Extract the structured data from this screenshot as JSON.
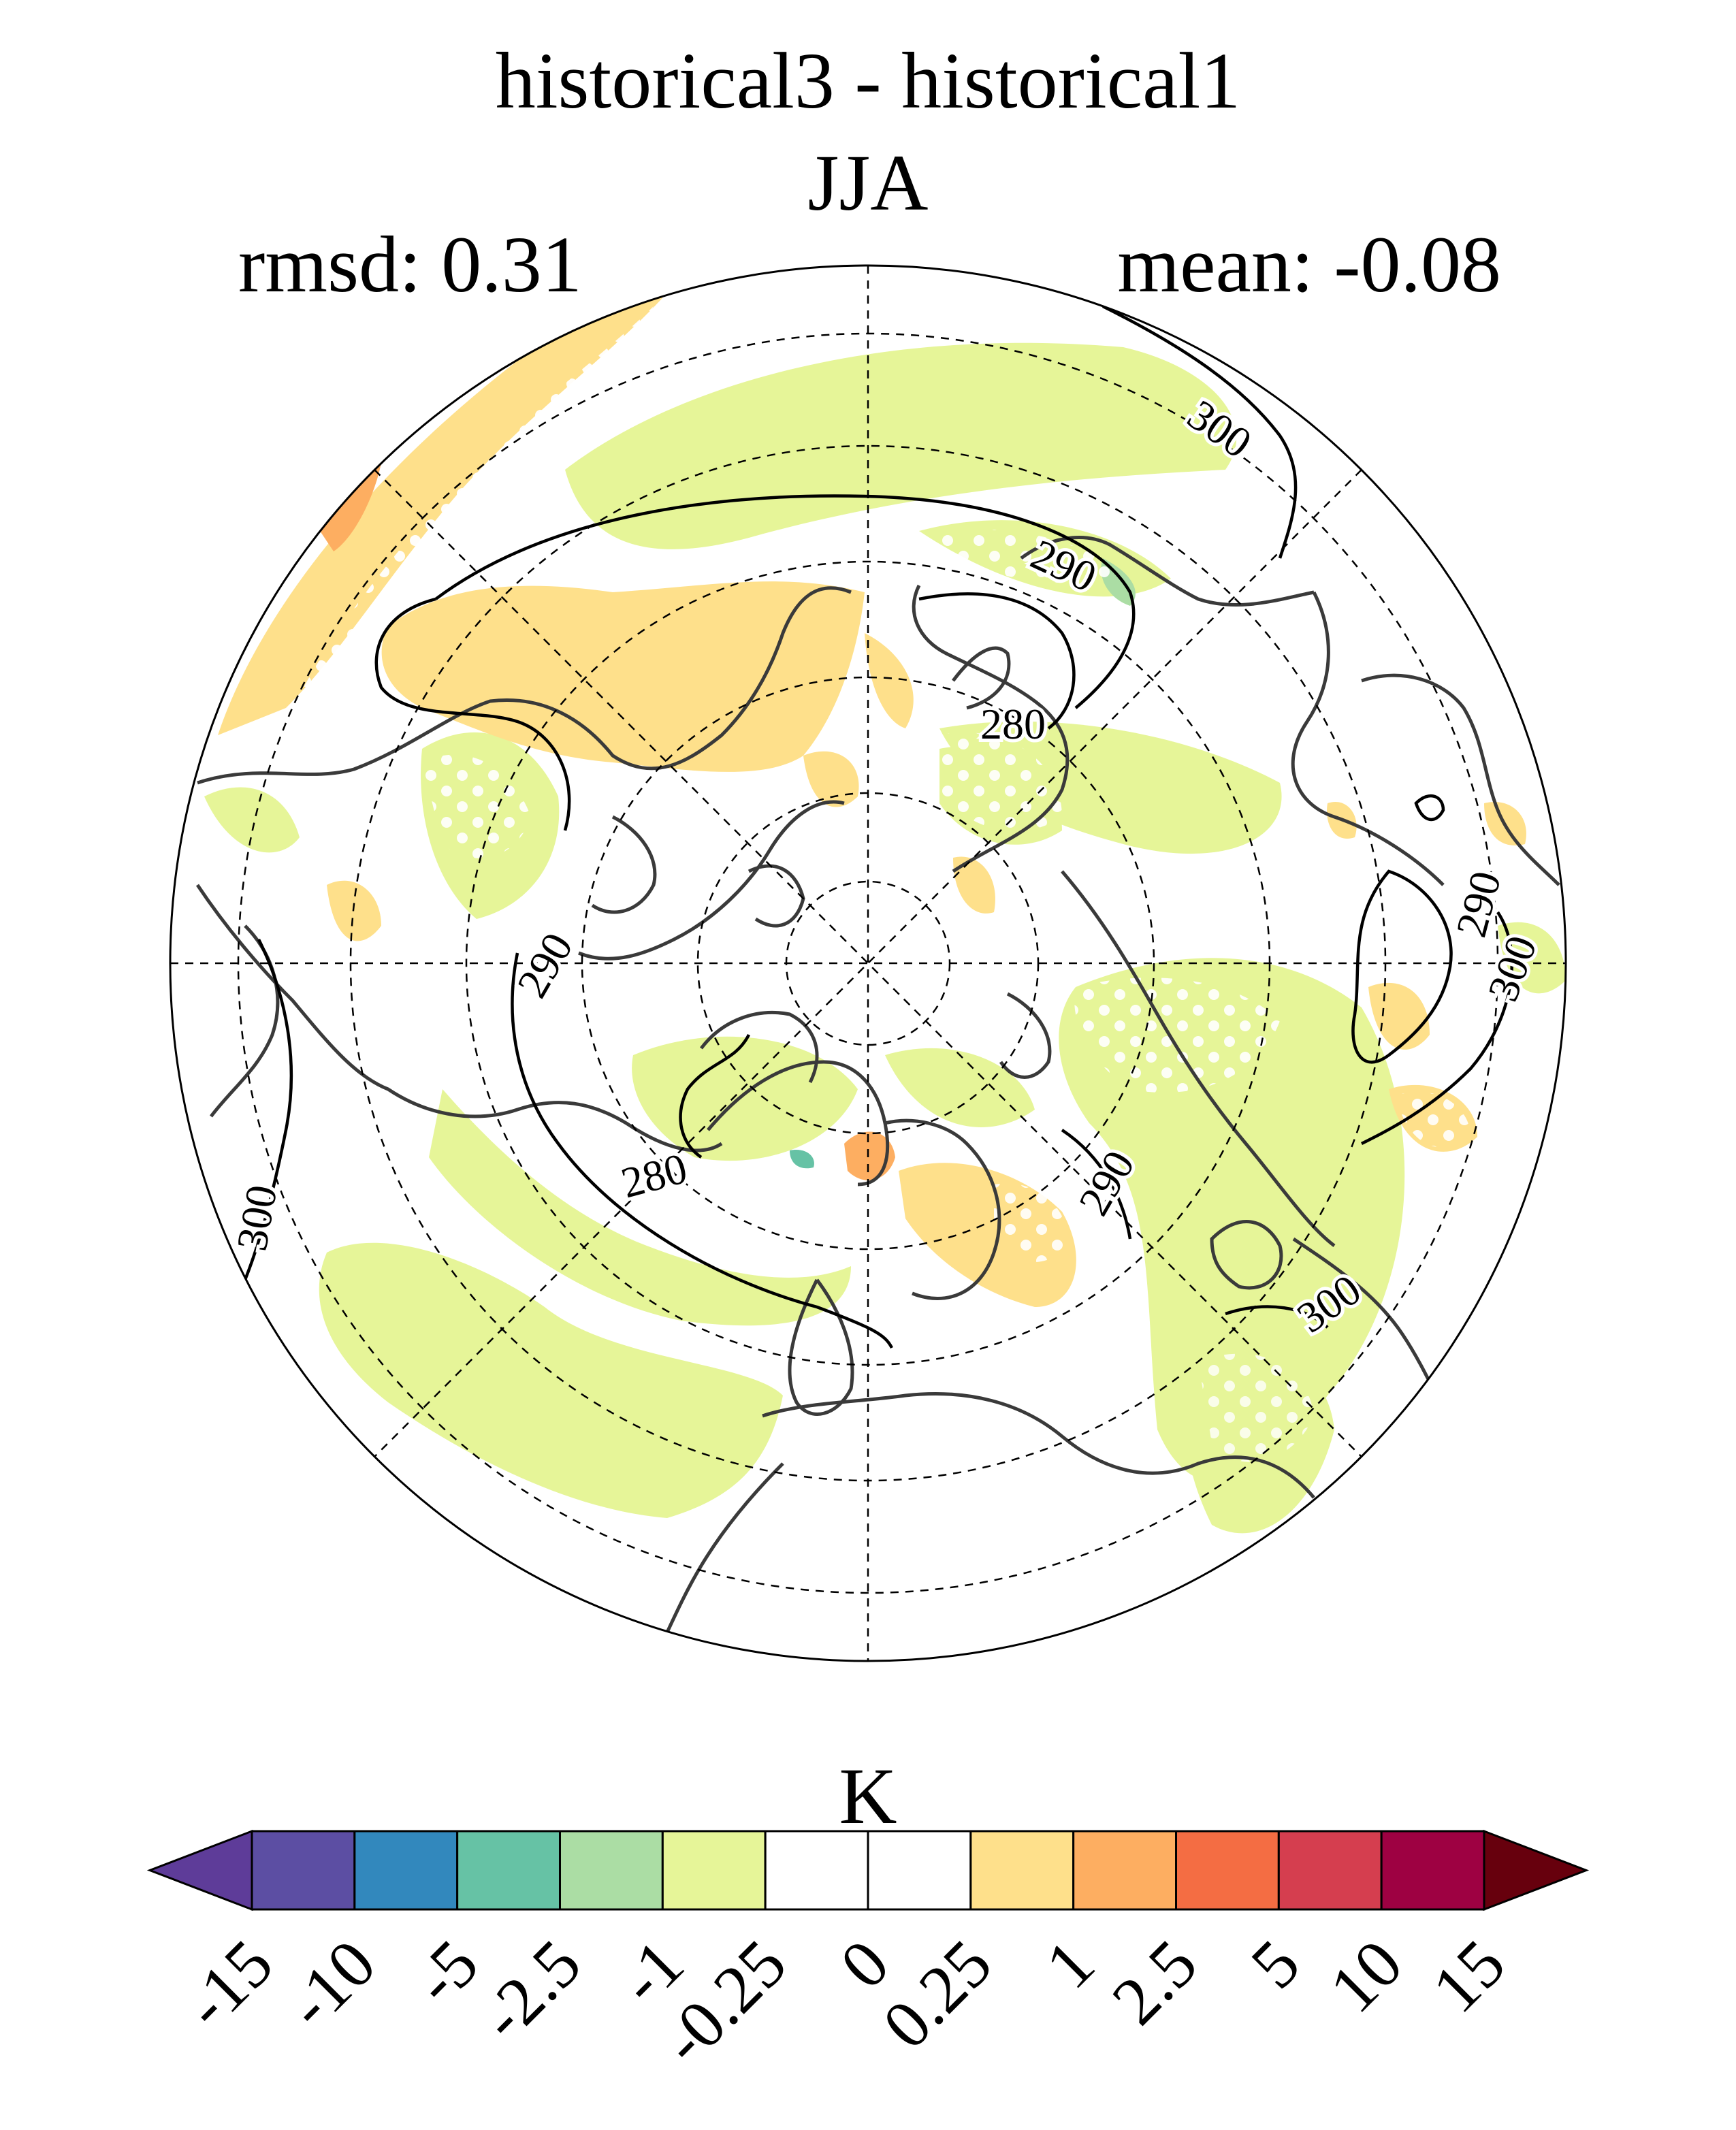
{
  "title": "historical3 - historical1",
  "season": "JJA",
  "stats": {
    "rmsd": "rmsd: 0.31",
    "mean": "mean: -0.08"
  },
  "contour_labels": [
    "300",
    "290",
    "280",
    "280",
    "290",
    "290",
    "300",
    "290",
    "300",
    "300",
    "280",
    "290"
  ],
  "colorbar": {
    "units": "K",
    "ticks": [
      "-15",
      "-10",
      "-5",
      "-2.5",
      "-1",
      "-0.25",
      "0",
      "0.25",
      "1",
      "2.5",
      "5",
      "10",
      "15"
    ],
    "colors": [
      "#5e3c99",
      "#5c4ea3",
      "#3288bd",
      "#66c2a5",
      "#abdda4",
      "#e6f598",
      "#ffffff",
      "#ffffff",
      "#fee08b",
      "#fdae61",
      "#f46d43",
      "#d53e4f",
      "#9e0142",
      "#67000d"
    ],
    "under_color": "#5e3c99",
    "over_color": "#67000d"
  },
  "colors": {
    "positive_light": "#fee08b",
    "positive_mid": "#fdae61",
    "negative_light": "#e6f598",
    "negative_mid": "#abdda4",
    "negative_strong": "#66c2a5"
  }
}
